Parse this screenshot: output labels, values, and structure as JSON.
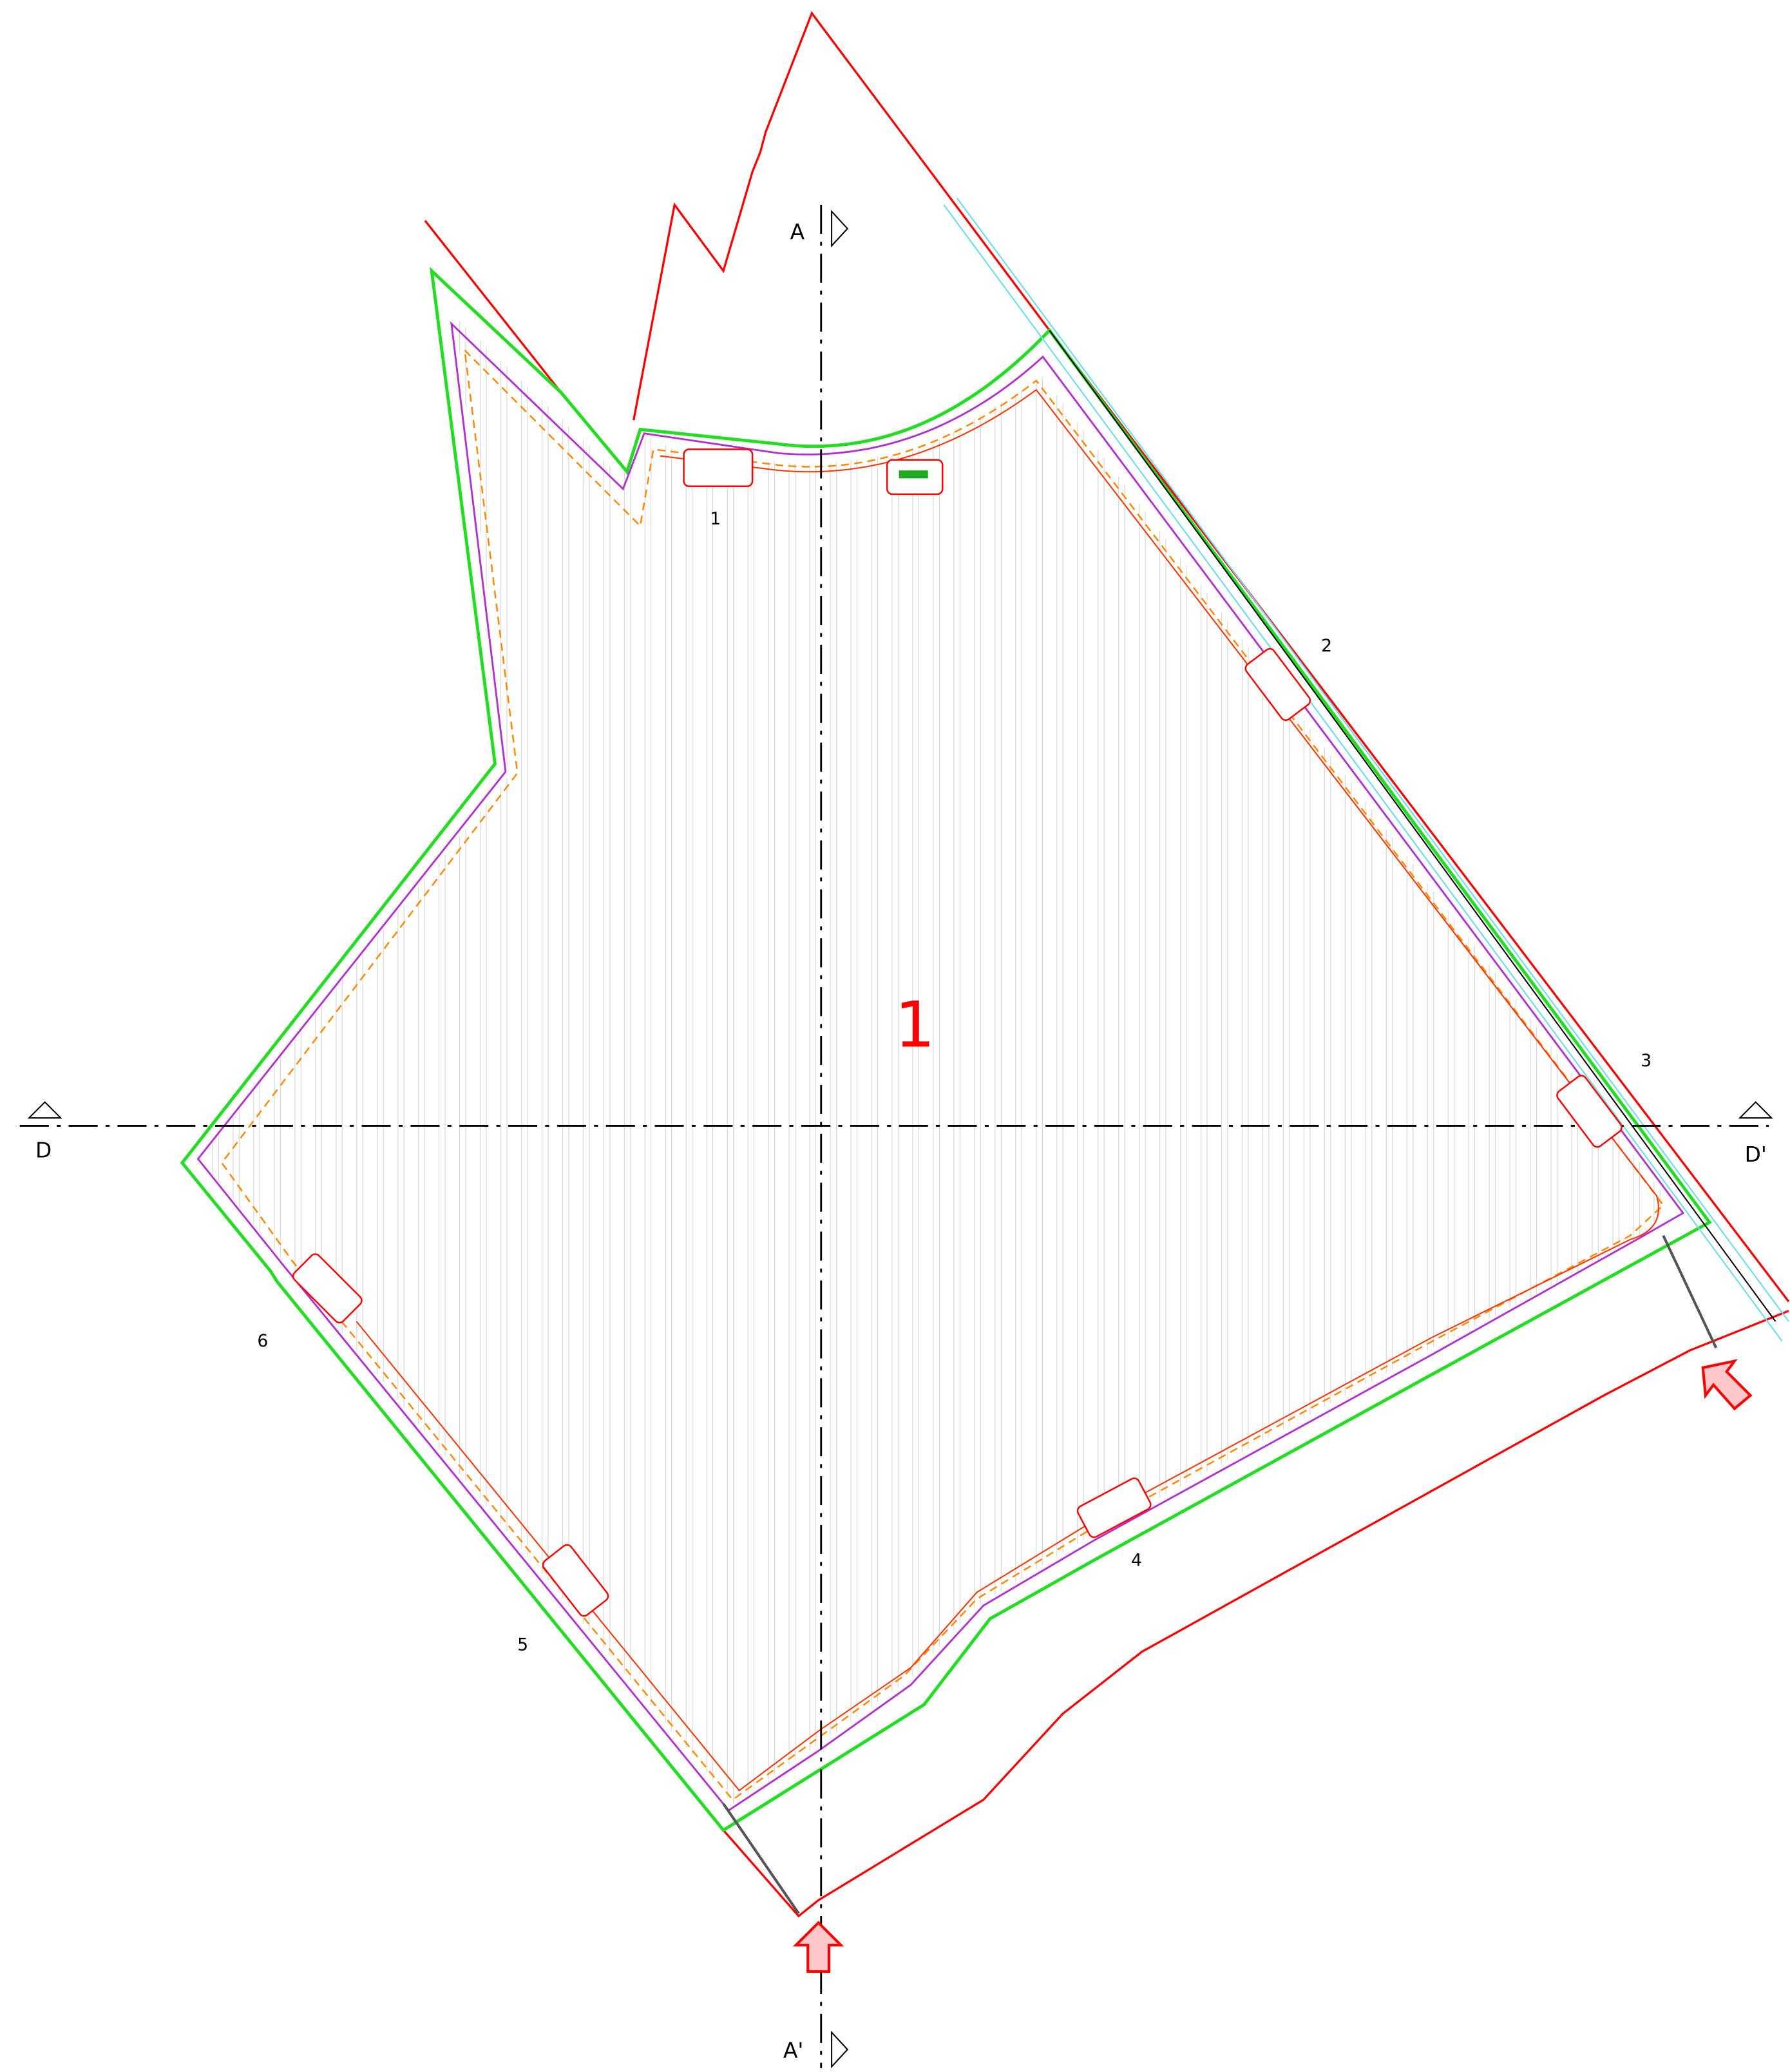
{
  "section_markers": {
    "a_top": "A",
    "a_bottom": "A'",
    "d_left": "D",
    "d_right": "D'"
  },
  "field_label": "1",
  "stations": [
    "1",
    "2",
    "3",
    "4",
    "5",
    "6"
  ]
}
